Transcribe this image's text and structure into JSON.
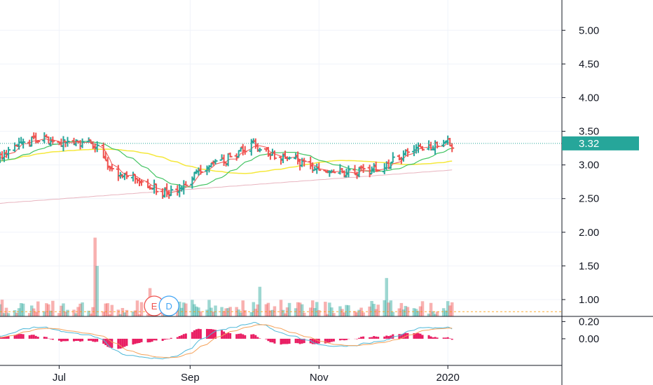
{
  "chart_data": {
    "type": "candlestick",
    "price_axis": {
      "ticks": [
        "5.00",
        "4.50",
        "4.00",
        "3.50",
        "3.00",
        "2.50",
        "2.00",
        "1.50",
        "1.00"
      ],
      "tick_values": [
        5.0,
        4.5,
        4.0,
        3.5,
        3.0,
        2.5,
        2.0,
        1.5,
        1.0
      ],
      "range": [
        0.75,
        5.45
      ]
    },
    "oscillator_axis": {
      "ticks": [
        "0.20",
        "0.00"
      ],
      "tick_values": [
        0.2,
        0.0
      ],
      "range": [
        -0.31,
        0.26
      ]
    },
    "time_axis": {
      "labels": [
        "Jul",
        "Sep",
        "Nov",
        "2020"
      ],
      "label_dates": [
        "2019-07-01",
        "2019-09-01",
        "2019-11-01",
        "2020-01-01"
      ],
      "range": [
        "2019-06-03",
        "2020-02-24"
      ]
    },
    "last_price": {
      "label": "3.32",
      "value": 3.32,
      "color": "#26a69a"
    },
    "volume_average": 0.82,
    "markers": [
      {
        "label": "E",
        "date": "2019-08-15",
        "color": "#ef5350"
      },
      {
        "label": "D",
        "date": "2019-08-22",
        "color": "#42a5f5"
      }
    ],
    "colors": {
      "up": "#26a69a",
      "down": "#ef5350",
      "ma_fast": "#ef5350",
      "ma_mid": "#43c463",
      "ma_slow": "#f5e83b",
      "ma_long": "#e8b4bf",
      "macd": "#4fb8d8",
      "signal": "#f5a25a",
      "vol_avg": "#ff9800"
    }
  }
}
